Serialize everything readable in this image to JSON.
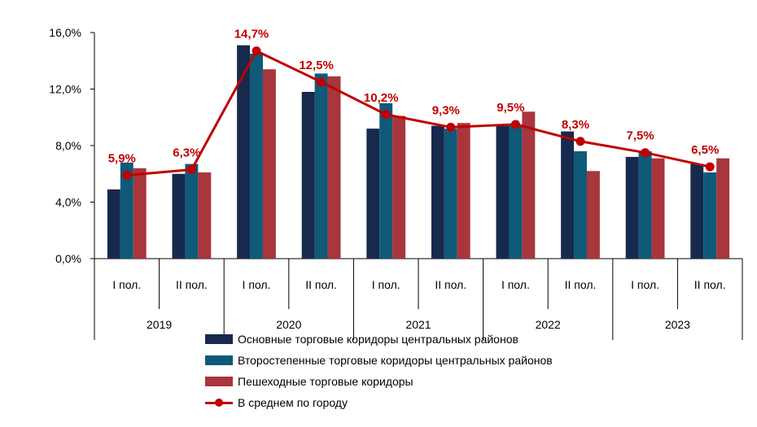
{
  "chart_data": {
    "type": "bar",
    "title": "",
    "xlabel": "",
    "ylabel": "",
    "ylim": [
      0,
      16
    ],
    "y_ticks": [
      "0,0%",
      "4,0%",
      "8,0%",
      "12,0%",
      "16,0%"
    ],
    "years": [
      "2019",
      "2020",
      "2021",
      "2022",
      "2023"
    ],
    "categories": [
      "I пол.",
      "II пол.",
      "I пол.",
      "II пол.",
      "I пол.",
      "II пол.",
      "I пол.",
      "II пол.",
      "I пол.",
      "II пол."
    ],
    "series": [
      {
        "name": "Основные торговые коридоры центральных районов",
        "color": "#17294D",
        "values": [
          4.9,
          6.0,
          15.1,
          11.8,
          9.2,
          9.4,
          9.4,
          9.0,
          7.2,
          6.7
        ]
      },
      {
        "name": "Второстепенные торговые коридоры центральных районов",
        "color": "#0F5A78",
        "values": [
          6.8,
          6.7,
          14.5,
          13.1,
          11.0,
          9.2,
          9.5,
          7.6,
          7.6,
          6.1
        ]
      },
      {
        "name": "Пешеходные торговые коридоры",
        "color": "#A8363C",
        "values": [
          6.4,
          6.1,
          13.4,
          12.9,
          10.1,
          9.6,
          10.4,
          6.2,
          7.1,
          7.1
        ]
      }
    ],
    "line": {
      "name": "В среднем по городу",
      "color": "#C00000",
      "values": [
        5.9,
        6.3,
        14.7,
        12.5,
        10.2,
        9.3,
        9.5,
        8.3,
        7.5,
        6.5
      ],
      "labels": [
        "5,9%",
        "6,3%",
        "14,7%",
        "12,5%",
        "10,2%",
        "9,3%",
        "9,5%",
        "8,3%",
        "7,5%",
        "6,5%"
      ]
    },
    "legend_position": "bottom",
    "grid": false
  }
}
